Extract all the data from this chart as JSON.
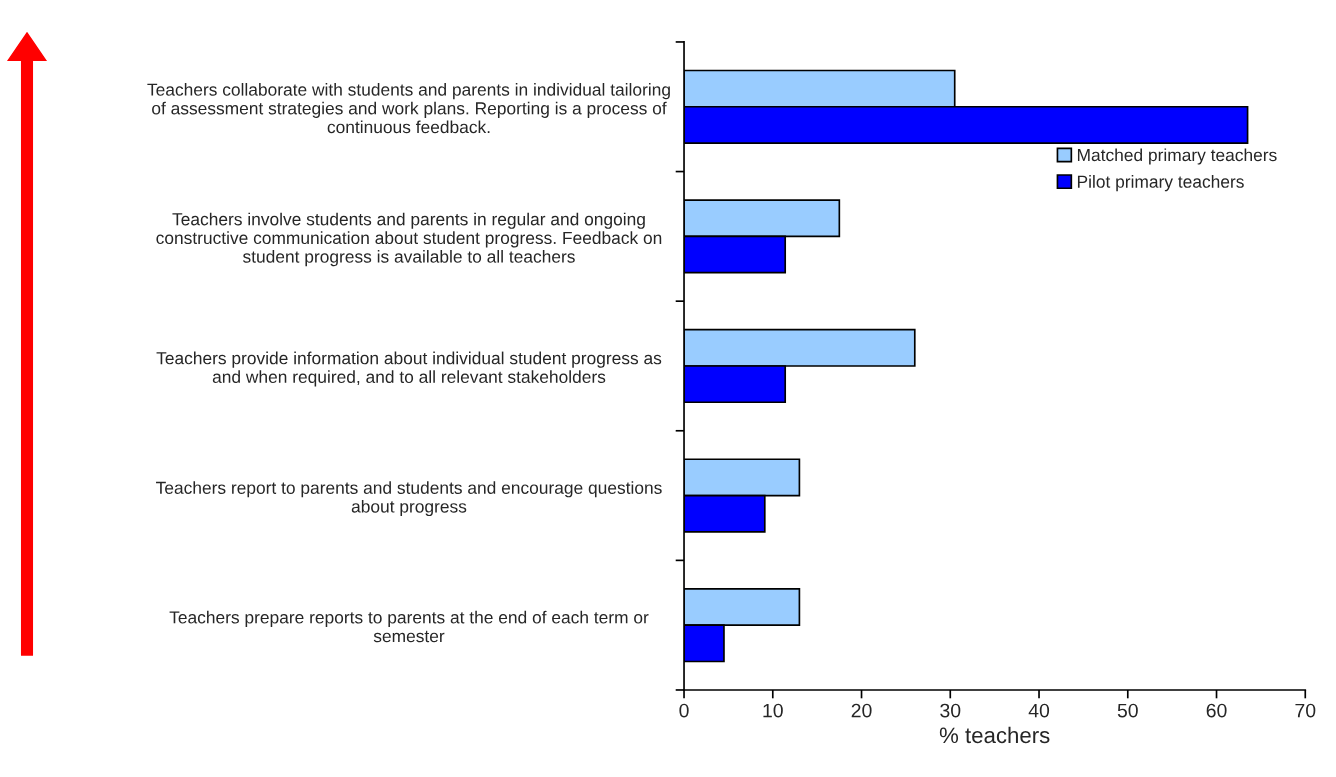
{
  "chart_data": {
    "type": "bar",
    "orientation": "horizontal",
    "xlabel": "% teachers",
    "categories": [
      "Teachers collaborate with students and parents in individual tailoring\nof assessment strategies and work plans. Reporting is a process of\ncontinuous feedback.",
      "Teachers involve students and parents in regular and ongoing\nconstructive communication about student progress. Feedback on\nstudent progress is available to all teachers",
      "Teachers provide information about individual student progress as\nand when required, and to all relevant stakeholders",
      "Teachers report to parents and students and encourage questions\nabout progress",
      "Teachers prepare reports to parents at the end of each term or\nsemester"
    ],
    "series": [
      {
        "name": "Matched primary teachers",
        "color": "#99ccff",
        "values": [
          30.5,
          17.5,
          26,
          13,
          13
        ]
      },
      {
        "name": "Pilot primary teachers",
        "color": "#0000ff",
        "values": [
          63.5,
          11.4,
          11.4,
          9.1,
          4.5
        ]
      }
    ],
    "xlim": [
      0,
      70
    ],
    "xticks": [
      0,
      10,
      20,
      30,
      40,
      50,
      60,
      70
    ],
    "legend": "top right",
    "grid": false
  }
}
